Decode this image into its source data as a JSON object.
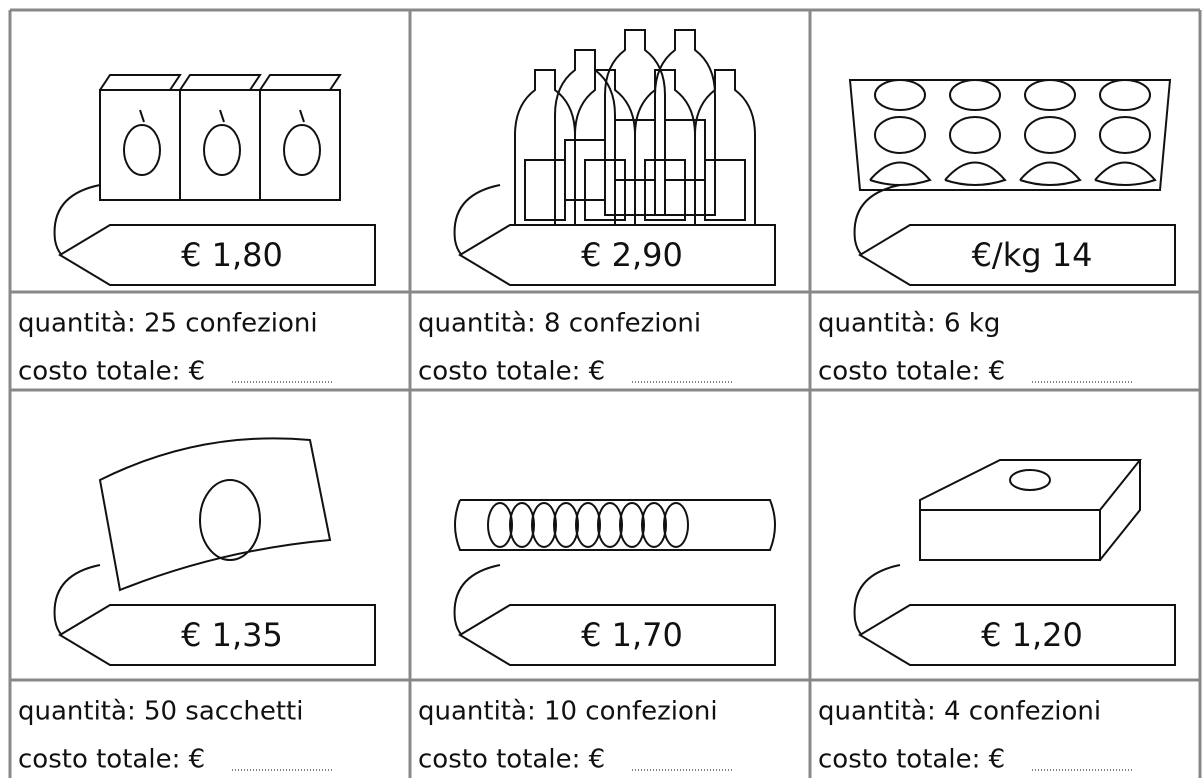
{
  "items": [
    {
      "price": "€ 1,80",
      "quantity": "quantità: 25 confezioni",
      "cost": "costo totale: €"
    },
    {
      "price": "€ 2,90",
      "quantity": "quantità: 8 confezioni",
      "cost": "costo totale: €"
    },
    {
      "price": "€/kg 14",
      "quantity": "quantità: 6 kg",
      "cost": "costo totale: €"
    },
    {
      "price": "€ 1,35",
      "quantity": "quantità: 50 sacchetti",
      "cost": "costo totale: €"
    },
    {
      "price": "€ 1,70",
      "quantity": "quantità: 10 confezioni",
      "cost": "costo totale: €"
    },
    {
      "price": "€ 1,20",
      "quantity": "quantità: 4 confezioni",
      "cost": "costo totale: €"
    }
  ]
}
